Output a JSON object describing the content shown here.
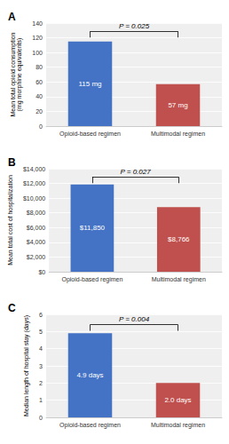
{
  "chart_data": [
    {
      "type": "bar",
      "title": "A",
      "ylabel": "Mean total opioid consumption\n(mg morphine equivalents)",
      "categories": [
        "Opioid-based regimen",
        "Multimodal regimen"
      ],
      "values": [
        115,
        57
      ],
      "value_labels": [
        "115 mg",
        "57 mg"
      ],
      "data_labels": true,
      "colors": [
        "#4472C4",
        "#C0504D"
      ],
      "ylim": [
        0,
        140
      ],
      "yticks": [
        0,
        20,
        40,
        60,
        80,
        100,
        120,
        140
      ],
      "grid": true,
      "annotation": "P = 0.025"
    },
    {
      "type": "bar",
      "title": "B",
      "ylabel": "Mean total cost of hospitalization",
      "categories": [
        "Opioid-based regimen",
        "Multimodal regimen"
      ],
      "values": [
        11850,
        8766
      ],
      "value_labels": [
        "$11,850",
        "$8,766"
      ],
      "data_labels": true,
      "colors": [
        "#4472C4",
        "#C0504D"
      ],
      "ylim": [
        0,
        14000
      ],
      "yticks": [
        {
          "value": 0,
          "label": "$0"
        },
        {
          "value": 2000,
          "label": "$2,000"
        },
        {
          "value": 4000,
          "label": "$4,000"
        },
        {
          "value": 6000,
          "label": "$6,000"
        },
        {
          "value": 8000,
          "label": "$8,000"
        },
        {
          "value": 10000,
          "label": "$10,000"
        },
        {
          "value": 12000,
          "label": "$12,000"
        },
        {
          "value": 14000,
          "label": "$14,000"
        }
      ],
      "grid": true,
      "annotation": "P = 0.027"
    },
    {
      "type": "bar",
      "title": "C",
      "ylabel": "Median length of hospital stay (days)",
      "categories": [
        "Opioid-based regimen",
        "Multimodal regimen"
      ],
      "values": [
        4.9,
        2.0
      ],
      "value_labels": [
        "4.9 days",
        "2.0 days"
      ],
      "data_labels": true,
      "colors": [
        "#4472C4",
        "#C0504D"
      ],
      "ylim": [
        0,
        6
      ],
      "yticks": [
        0,
        1,
        2,
        3,
        4,
        5,
        6
      ],
      "grid": true,
      "annotation": "P = 0.004"
    }
  ]
}
